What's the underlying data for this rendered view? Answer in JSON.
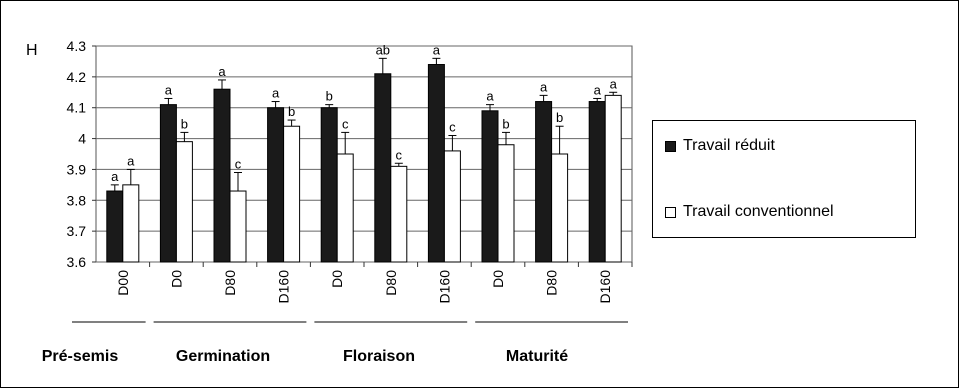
{
  "chart_data": {
    "type": "bar",
    "ylabel": "H",
    "ylim": [
      3.6,
      4.3
    ],
    "yticks": [
      "3.6",
      "3.7",
      "3.8",
      "3.9",
      "4",
      "4.1",
      "4.2",
      "4.3"
    ],
    "grid": true,
    "categories": [
      "D00",
      "D0",
      "D80",
      "D160",
      "D0",
      "D80",
      "D160",
      "D0",
      "D80",
      "D160"
    ],
    "stages": [
      {
        "label": "Pré-semis",
        "from": 0,
        "to": 0
      },
      {
        "label": "Germination",
        "from": 1,
        "to": 3
      },
      {
        "label": "Floraison",
        "from": 4,
        "to": 6
      },
      {
        "label": "Maturité",
        "from": 7,
        "to": 9
      }
    ],
    "series": [
      {
        "name": "Travail réduit",
        "color": "#1a1a1a",
        "values": [
          3.83,
          4.11,
          4.16,
          4.1,
          4.1,
          4.21,
          4.24,
          4.09,
          4.12,
          4.12
        ],
        "errors": [
          0.02,
          0.02,
          0.03,
          0.02,
          0.01,
          0.05,
          0.02,
          0.02,
          0.02,
          0.01
        ],
        "letters": [
          "a",
          "a",
          "a",
          "a",
          "b",
          "ab",
          "a",
          "a",
          "a",
          "a"
        ]
      },
      {
        "name": "Travail conventionnel",
        "color": "#ffffff",
        "values": [
          3.85,
          3.99,
          3.83,
          4.04,
          3.95,
          3.91,
          3.96,
          3.98,
          3.95,
          4.14
        ],
        "errors": [
          0.05,
          0.03,
          0.06,
          0.02,
          0.07,
          0.01,
          0.05,
          0.04,
          0.09,
          0.01
        ],
        "letters": [
          "a",
          "b",
          "c",
          "b",
          "c",
          "c",
          "c",
          "b",
          "b",
          "a"
        ]
      }
    ],
    "legend": {
      "position": "right",
      "items": [
        "Travail réduit",
        "Travail conventionnel"
      ]
    }
  }
}
